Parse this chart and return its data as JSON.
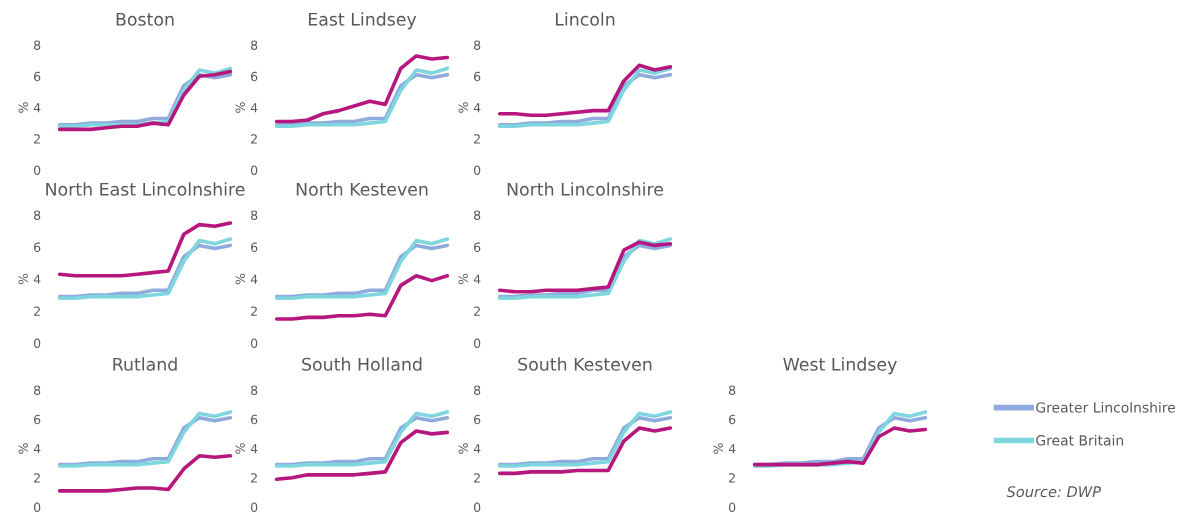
{
  "chart_data": [
    {
      "type": "line",
      "title": "Boston",
      "ylabel": "%",
      "categories": [
        null,
        null,
        null,
        null,
        null,
        null,
        null,
        null,
        null,
        null,
        null,
        null
      ],
      "ylim": [
        0,
        8
      ],
      "yticks": [
        0,
        2,
        4,
        6,
        8
      ],
      "tick_labels": "y",
      "grid": false,
      "legend": false,
      "series": [
        {
          "color": "#8faadc",
          "values": [
            2.9,
            2.9,
            3.0,
            3.0,
            3.1,
            3.1,
            3.3,
            3.3,
            5.4,
            6.1,
            5.9,
            6.1
          ]
        },
        {
          "color": "#7fd6df",
          "values": [
            2.8,
            2.8,
            2.9,
            2.9,
            2.9,
            2.9,
            3.0,
            3.1,
            5.1,
            6.4,
            6.2,
            6.5
          ]
        },
        {
          "color": "#b5177e",
          "values": [
            2.6,
            2.6,
            2.6,
            2.7,
            2.8,
            2.8,
            3.0,
            2.9,
            4.8,
            6.0,
            6.1,
            6.3
          ]
        }
      ]
    },
    {
      "type": "line",
      "title": "East Lindsey",
      "ylabel": "%",
      "categories": [
        null,
        null,
        null,
        null,
        null,
        null,
        null,
        null,
        null,
        null,
        null,
        null
      ],
      "ylim": [
        0,
        8
      ],
      "yticks": [
        0,
        2,
        4,
        6,
        8
      ],
      "tick_labels": "y",
      "grid": false,
      "legend": false,
      "series": [
        {
          "color": "#8faadc",
          "values": [
            2.9,
            2.9,
            3.0,
            3.0,
            3.1,
            3.1,
            3.3,
            3.3,
            5.4,
            6.1,
            5.9,
            6.1
          ]
        },
        {
          "color": "#7fd6df",
          "values": [
            2.8,
            2.8,
            2.9,
            2.9,
            2.9,
            2.9,
            3.0,
            3.1,
            5.1,
            6.4,
            6.2,
            6.5
          ]
        },
        {
          "color": "#b5177e",
          "values": [
            3.1,
            3.1,
            3.2,
            3.6,
            3.8,
            4.1,
            4.4,
            4.2,
            6.5,
            7.3,
            7.1,
            7.2
          ]
        }
      ]
    },
    {
      "type": "line",
      "title": "Lincoln",
      "ylabel": "%",
      "categories": [
        null,
        null,
        null,
        null,
        null,
        null,
        null,
        null,
        null,
        null,
        null,
        null
      ],
      "ylim": [
        0,
        8
      ],
      "yticks": [
        0,
        2,
        4,
        6,
        8
      ],
      "tick_labels": "y",
      "grid": false,
      "legend": false,
      "series": [
        {
          "color": "#8faadc",
          "values": [
            2.9,
            2.9,
            3.0,
            3.0,
            3.1,
            3.1,
            3.3,
            3.3,
            5.4,
            6.1,
            5.9,
            6.1
          ]
        },
        {
          "color": "#7fd6df",
          "values": [
            2.8,
            2.8,
            2.9,
            2.9,
            2.9,
            2.9,
            3.0,
            3.1,
            5.1,
            6.4,
            6.2,
            6.5
          ]
        },
        {
          "color": "#b5177e",
          "values": [
            3.6,
            3.6,
            3.5,
            3.5,
            3.6,
            3.7,
            3.8,
            3.8,
            5.7,
            6.7,
            6.4,
            6.6
          ]
        }
      ]
    },
    {
      "type": "line",
      "title": "North East Lincolnshire",
      "ylabel": "%",
      "categories": [
        null,
        null,
        null,
        null,
        null,
        null,
        null,
        null,
        null,
        null,
        null,
        null
      ],
      "ylim": [
        0,
        8
      ],
      "yticks": [
        0,
        2,
        4,
        6,
        8
      ],
      "tick_labels": "y",
      "grid": false,
      "legend": false,
      "series": [
        {
          "color": "#8faadc",
          "values": [
            2.9,
            2.9,
            3.0,
            3.0,
            3.1,
            3.1,
            3.3,
            3.3,
            5.4,
            6.1,
            5.9,
            6.1
          ]
        },
        {
          "color": "#7fd6df",
          "values": [
            2.8,
            2.8,
            2.9,
            2.9,
            2.9,
            2.9,
            3.0,
            3.1,
            5.1,
            6.4,
            6.2,
            6.5
          ]
        },
        {
          "color": "#b5177e",
          "values": [
            4.3,
            4.2,
            4.2,
            4.2,
            4.2,
            4.3,
            4.4,
            4.5,
            6.8,
            7.4,
            7.3,
            7.5
          ]
        }
      ]
    },
    {
      "type": "line",
      "title": "North Kesteven",
      "ylabel": "%",
      "categories": [
        null,
        null,
        null,
        null,
        null,
        null,
        null,
        null,
        null,
        null,
        null,
        null
      ],
      "ylim": [
        0,
        8
      ],
      "yticks": [
        0,
        2,
        4,
        6,
        8
      ],
      "tick_labels": "y",
      "grid": false,
      "legend": false,
      "series": [
        {
          "color": "#8faadc",
          "values": [
            2.9,
            2.9,
            3.0,
            3.0,
            3.1,
            3.1,
            3.3,
            3.3,
            5.4,
            6.1,
            5.9,
            6.1
          ]
        },
        {
          "color": "#7fd6df",
          "values": [
            2.8,
            2.8,
            2.9,
            2.9,
            2.9,
            2.9,
            3.0,
            3.1,
            5.1,
            6.4,
            6.2,
            6.5
          ]
        },
        {
          "color": "#b5177e",
          "values": [
            1.5,
            1.5,
            1.6,
            1.6,
            1.7,
            1.7,
            1.8,
            1.7,
            3.6,
            4.2,
            3.9,
            4.2
          ]
        }
      ]
    },
    {
      "type": "line",
      "title": "North Lincolnshire",
      "ylabel": "%",
      "categories": [
        null,
        null,
        null,
        null,
        null,
        null,
        null,
        null,
        null,
        null,
        null,
        null
      ],
      "ylim": [
        0,
        8
      ],
      "yticks": [
        0,
        2,
        4,
        6,
        8
      ],
      "tick_labels": "y",
      "grid": false,
      "legend": false,
      "series": [
        {
          "color": "#8faadc",
          "values": [
            2.9,
            2.9,
            3.0,
            3.0,
            3.1,
            3.1,
            3.3,
            3.3,
            5.4,
            6.1,
            5.9,
            6.1
          ]
        },
        {
          "color": "#7fd6df",
          "values": [
            2.8,
            2.8,
            2.9,
            2.9,
            2.9,
            2.9,
            3.0,
            3.1,
            5.1,
            6.4,
            6.2,
            6.5
          ]
        },
        {
          "color": "#b5177e",
          "values": [
            3.3,
            3.2,
            3.2,
            3.3,
            3.3,
            3.3,
            3.4,
            3.5,
            5.8,
            6.3,
            6.1,
            6.2
          ]
        }
      ]
    },
    {
      "type": "line",
      "title": "Rutland",
      "ylabel": "%",
      "categories": [
        null,
        null,
        null,
        null,
        null,
        null,
        null,
        null,
        null,
        null,
        null,
        null
      ],
      "ylim": [
        0,
        8
      ],
      "yticks": [
        0,
        2,
        4,
        6,
        8
      ],
      "tick_labels": "y",
      "grid": false,
      "legend": false,
      "series": [
        {
          "color": "#8faadc",
          "values": [
            2.9,
            2.9,
            3.0,
            3.0,
            3.1,
            3.1,
            3.3,
            3.3,
            5.4,
            6.1,
            5.9,
            6.1
          ]
        },
        {
          "color": "#7fd6df",
          "values": [
            2.8,
            2.8,
            2.9,
            2.9,
            2.9,
            2.9,
            3.0,
            3.1,
            5.1,
            6.4,
            6.2,
            6.5
          ]
        },
        {
          "color": "#b5177e",
          "values": [
            1.1,
            1.1,
            1.1,
            1.1,
            1.2,
            1.3,
            1.3,
            1.2,
            2.6,
            3.5,
            3.4,
            3.5
          ]
        }
      ]
    },
    {
      "type": "line",
      "title": "South Holland",
      "ylabel": "%",
      "categories": [
        null,
        null,
        null,
        null,
        null,
        null,
        null,
        null,
        null,
        null,
        null,
        null
      ],
      "ylim": [
        0,
        8
      ],
      "yticks": [
        0,
        2,
        4,
        6,
        8
      ],
      "tick_labels": "y",
      "grid": false,
      "legend": false,
      "series": [
        {
          "color": "#8faadc",
          "values": [
            2.9,
            2.9,
            3.0,
            3.0,
            3.1,
            3.1,
            3.3,
            3.3,
            5.4,
            6.1,
            5.9,
            6.1
          ]
        },
        {
          "color": "#7fd6df",
          "values": [
            2.8,
            2.8,
            2.9,
            2.9,
            2.9,
            2.9,
            3.0,
            3.1,
            5.1,
            6.4,
            6.2,
            6.5
          ]
        },
        {
          "color": "#b5177e",
          "values": [
            1.9,
            2.0,
            2.2,
            2.2,
            2.2,
            2.2,
            2.3,
            2.4,
            4.4,
            5.2,
            5.0,
            5.1
          ]
        }
      ]
    },
    {
      "type": "line",
      "title": "South Kesteven",
      "ylabel": "%",
      "categories": [
        null,
        null,
        null,
        null,
        null,
        null,
        null,
        null,
        null,
        null,
        null,
        null
      ],
      "ylim": [
        0,
        8
      ],
      "yticks": [
        0,
        2,
        4,
        6,
        8
      ],
      "tick_labels": "y",
      "grid": false,
      "legend": false,
      "series": [
        {
          "color": "#8faadc",
          "values": [
            2.9,
            2.9,
            3.0,
            3.0,
            3.1,
            3.1,
            3.3,
            3.3,
            5.4,
            6.1,
            5.9,
            6.1
          ]
        },
        {
          "color": "#7fd6df",
          "values": [
            2.8,
            2.8,
            2.9,
            2.9,
            2.9,
            2.9,
            3.0,
            3.1,
            5.1,
            6.4,
            6.2,
            6.5
          ]
        },
        {
          "color": "#b5177e",
          "values": [
            2.3,
            2.3,
            2.4,
            2.4,
            2.4,
            2.5,
            2.5,
            2.5,
            4.5,
            5.4,
            5.2,
            5.4
          ]
        }
      ]
    },
    {
      "type": "line",
      "title": "West Lindsey",
      "ylabel": "%",
      "categories": [
        null,
        null,
        null,
        null,
        null,
        null,
        null,
        null,
        null,
        null,
        null,
        null
      ],
      "ylim": [
        0,
        8
      ],
      "yticks": [
        0,
        2,
        4,
        6,
        8
      ],
      "tick_labels": "y",
      "grid": false,
      "legend": "right",
      "annotations": [
        "Source: DWP"
      ],
      "series": [
        {
          "name": "Greater Lincolnshire",
          "color": "#8faadc",
          "values": [
            2.9,
            2.9,
            3.0,
            3.0,
            3.1,
            3.1,
            3.3,
            3.3,
            5.4,
            6.1,
            5.9,
            6.1
          ]
        },
        {
          "name": "Great Britain",
          "color": "#7fd6df",
          "values": [
            2.8,
            2.8,
            2.9,
            2.9,
            2.9,
            2.9,
            3.0,
            3.1,
            5.1,
            6.4,
            6.2,
            6.5
          ]
        },
        {
          "color": "#b5177e",
          "values": [
            2.9,
            2.9,
            2.9,
            2.9,
            2.9,
            3.0,
            3.1,
            3.0,
            4.8,
            5.4,
            5.2,
            5.3
          ]
        }
      ]
    }
  ]
}
